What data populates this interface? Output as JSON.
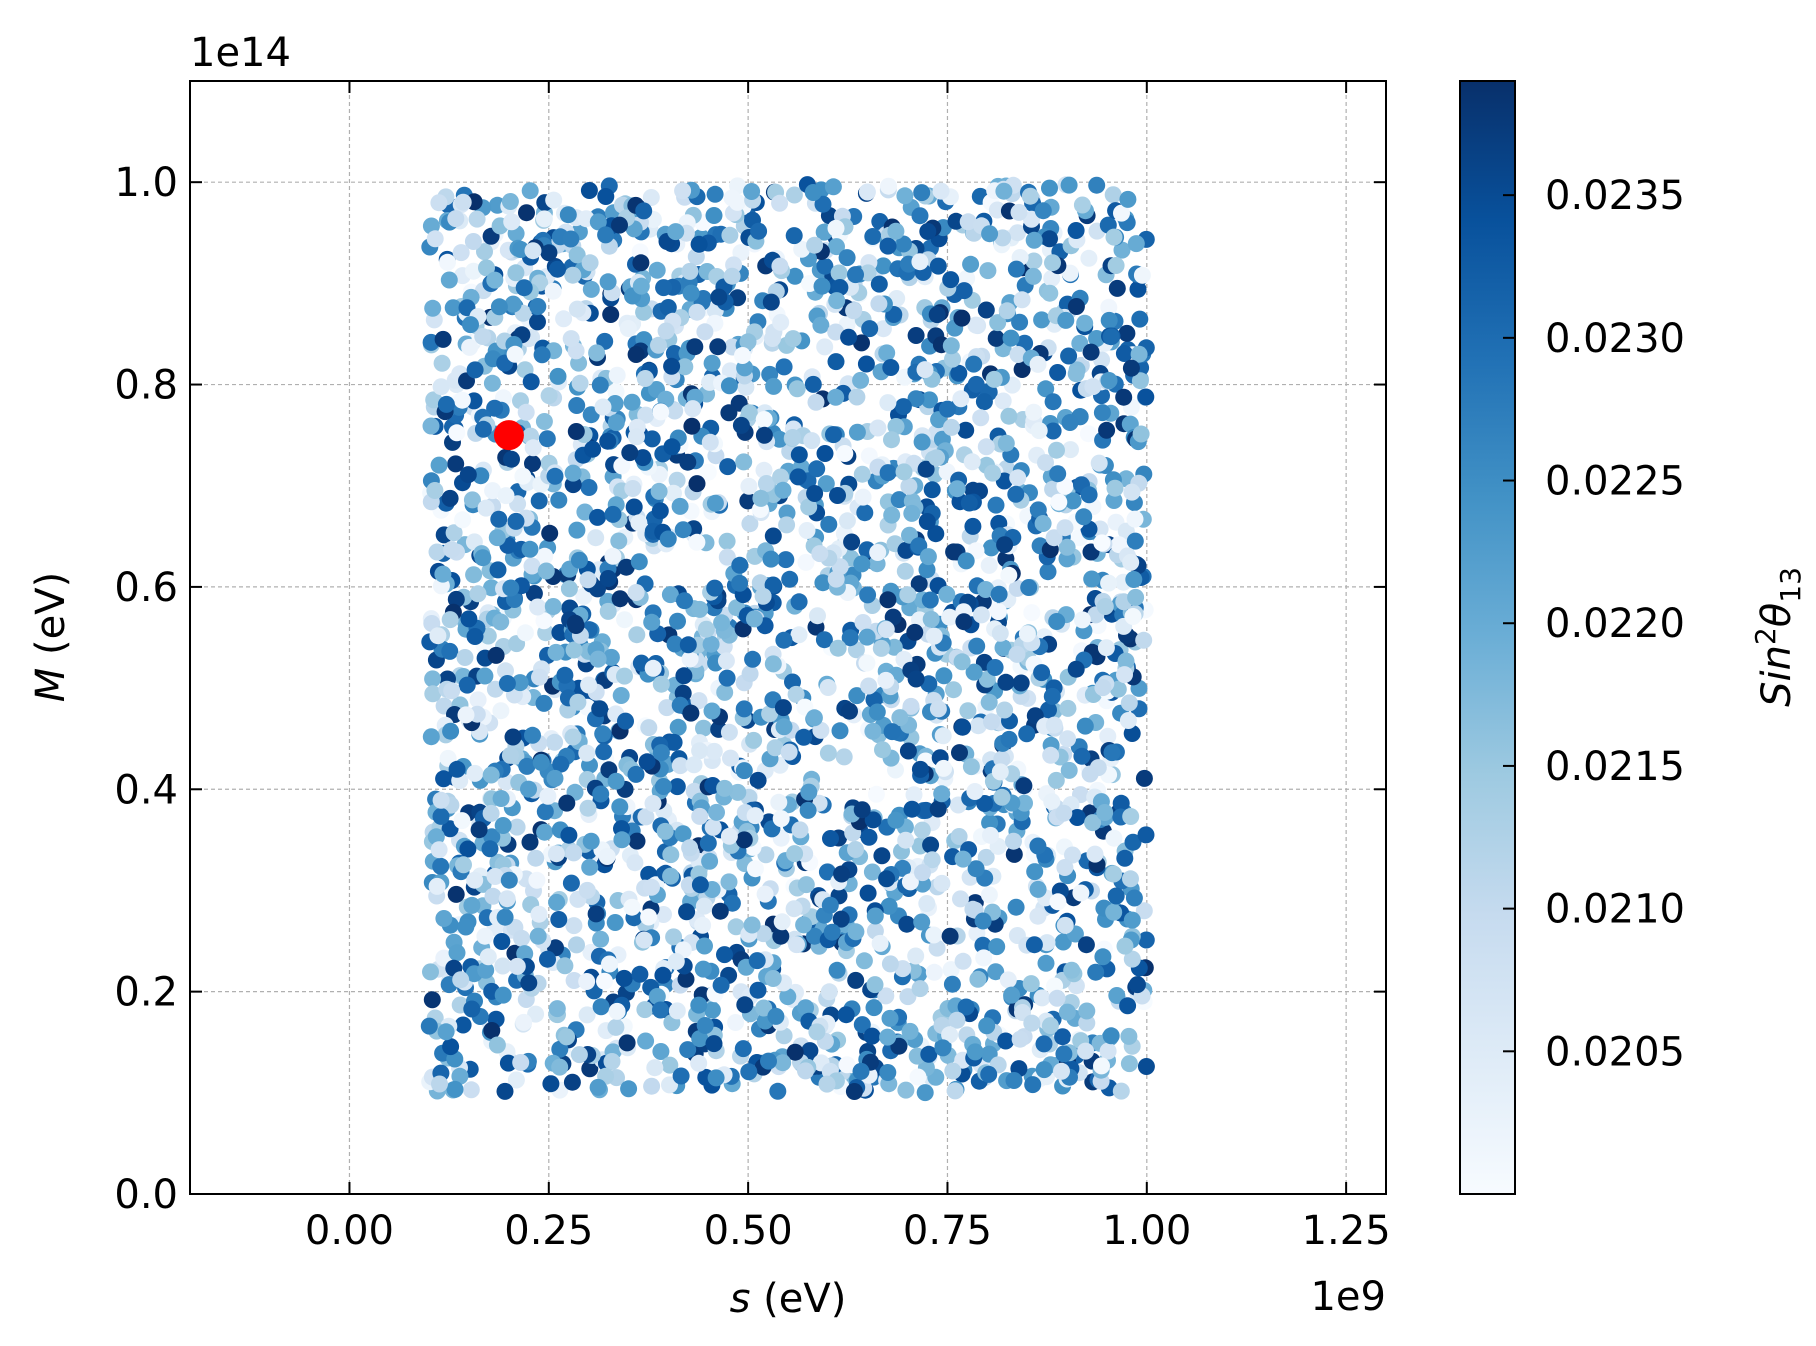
{
  "chart_data": {
    "type": "scatter",
    "title": "",
    "xlabel_var": "s",
    "xlabel_unit": " (eV)",
    "ylabel_var": "M",
    "ylabel_unit": " (eV)",
    "x_offset_text": "1e9",
    "y_offset_text": "1e14",
    "x_scale_factor": 1000000000,
    "y_scale_factor": 100000000000000,
    "xlim": [
      -0.2,
      1.3
    ],
    "ylim": [
      0.0,
      1.1
    ],
    "x_ticks": [
      "0.00",
      "0.25",
      "0.50",
      "0.75",
      "1.00",
      "1.25"
    ],
    "y_ticks": [
      "0.0",
      "0.2",
      "0.4",
      "0.6",
      "0.8",
      "1.0"
    ],
    "grid": true,
    "colormap": "Blues",
    "point_color_low": "#f7fbff",
    "point_color_high": "#08306b",
    "scatter_region": {
      "x_range": [
        0.1,
        1.0
      ],
      "y_range": [
        0.1,
        1.0
      ],
      "approx_point_count": 3000
    },
    "highlight_point": {
      "x": 0.2,
      "y": 0.75,
      "color": "#ff0000"
    },
    "colorbar": {
      "label_base": "Sin",
      "label_sup": "2",
      "label_theta": "θ",
      "label_sub": "13",
      "range": [
        0.02,
        0.0239
      ],
      "ticks": [
        "0.0205",
        "0.0210",
        "0.0215",
        "0.0220",
        "0.0225",
        "0.0230",
        "0.0235"
      ]
    }
  }
}
